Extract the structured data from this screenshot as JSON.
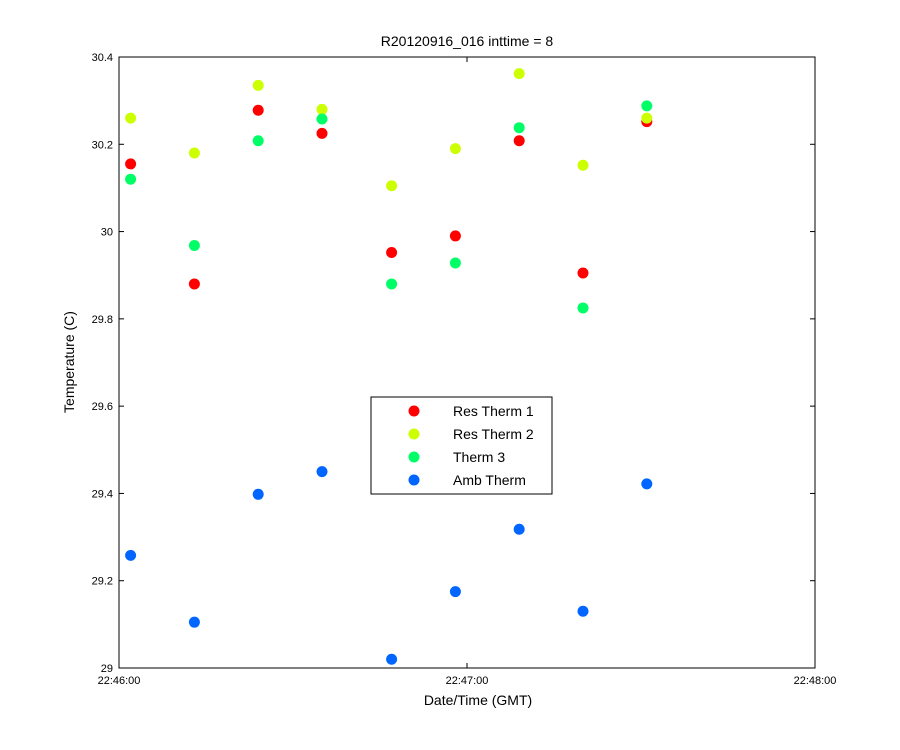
{
  "chart_data": {
    "type": "scatter",
    "title": "R20120916_016 inttime = 8",
    "xlabel": "Date/Time (GMT)",
    "ylabel": "Temperature (C)",
    "xlim": [
      "22:46:00",
      "22:48:00"
    ],
    "ylim": [
      29,
      30.4
    ],
    "x_ticks": [
      "22:46:00",
      "22:47:00",
      "22:48:00"
    ],
    "y_ticks": [
      "29",
      "29.2",
      "29.4",
      "29.6",
      "29.8",
      "30",
      "30.2",
      "30.4"
    ],
    "x": [
      "22:46:02",
      "22:46:13",
      "22:46:24",
      "22:46:35",
      "22:46:47",
      "22:46:58",
      "22:47:09",
      "22:47:20",
      "22:47:31"
    ],
    "grid": false,
    "legend_position": "center",
    "series": [
      {
        "name": "Res Therm 1",
        "color": "#ff0000",
        "values": [
          30.155,
          29.88,
          30.278,
          30.225,
          29.952,
          29.99,
          30.208,
          29.905,
          30.252
        ]
      },
      {
        "name": "Res Therm 2",
        "color": "#ccff00",
        "values": [
          30.26,
          30.18,
          30.335,
          30.28,
          30.105,
          30.19,
          30.362,
          30.152,
          30.26
        ]
      },
      {
        "name": "Therm 3",
        "color": "#00ff66",
        "values": [
          30.12,
          29.968,
          30.208,
          30.258,
          29.88,
          29.928,
          30.238,
          29.825,
          30.288
        ]
      },
      {
        "name": "Amb Therm",
        "color": "#0066ff",
        "values": [
          29.258,
          29.105,
          29.398,
          29.45,
          29.02,
          29.175,
          29.318,
          29.13,
          29.422
        ]
      }
    ]
  }
}
